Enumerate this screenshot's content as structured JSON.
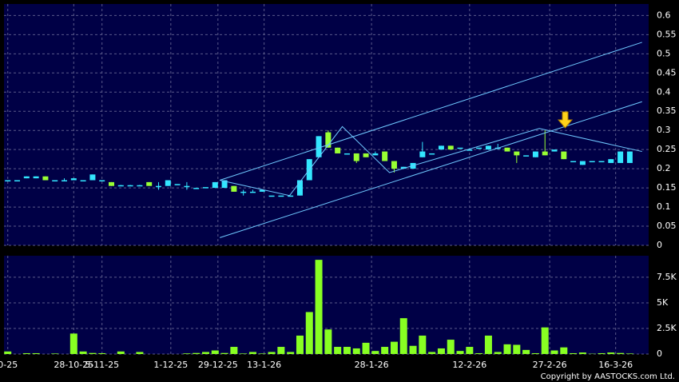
{
  "chart_data": [
    {
      "type": "candlestick",
      "xlim": [
        -0.4,
        68
      ],
      "ylim": [
        0,
        0.63
      ],
      "yticks": [
        0,
        0.05,
        0.1,
        0.15,
        0.2,
        0.25,
        0.3,
        0.35,
        0.4,
        0.45,
        0.5,
        0.55,
        0.6
      ],
      "xticks": [
        {
          "value": 0,
          "label": "0-25"
        },
        {
          "value": 7,
          "label": "28-10-25"
        },
        {
          "value": 10,
          "label": "5-11-25"
        },
        {
          "value": 17.3,
          "label": "1-12-25"
        },
        {
          "value": 22.3,
          "label": "29-12-25"
        },
        {
          "value": 27.2,
          "label": "13-1-26"
        },
        {
          "value": 38.6,
          "label": "28-1-26"
        },
        {
          "value": 49,
          "label": "12-2-26"
        },
        {
          "value": 57.5,
          "label": "27-2-26"
        },
        {
          "value": 64.5,
          "label": "16-3-26"
        }
      ],
      "grid": true,
      "up_color": "#33e6ff",
      "down_color": "#99ff33",
      "open": [
        0.17,
        0.17,
        0.175,
        0.175,
        0.18,
        0.17,
        0.17,
        0.17,
        0.17,
        0.17,
        0.17,
        0.165,
        0.157,
        0.157,
        0.157,
        0.165,
        0.155,
        0.155,
        0.16,
        0.155,
        0.148,
        0.152,
        0.15,
        0.15,
        0.155,
        0.14,
        0.14,
        0.14,
        0.13,
        0.13,
        0.13,
        0.13,
        0.17,
        0.23,
        0.295,
        0.255,
        0.24,
        0.24,
        0.24,
        0.235,
        0.245,
        0.22,
        0.2,
        0.2,
        0.23,
        0.24,
        0.25,
        0.26,
        0.255,
        0.25,
        0.255,
        0.25,
        0.255,
        0.255,
        0.245,
        0.235,
        0.23,
        0.245,
        0.245,
        0.245,
        0.22,
        0.21,
        0.22,
        0.22,
        0.215,
        0.215,
        0.215
      ],
      "high": [
        0.17,
        0.17,
        0.18,
        0.18,
        0.18,
        0.17,
        0.175,
        0.175,
        0.17,
        0.185,
        0.17,
        0.165,
        0.158,
        0.158,
        0.158,
        0.165,
        0.165,
        0.17,
        0.16,
        0.165,
        0.15,
        0.152,
        0.165,
        0.17,
        0.155,
        0.145,
        0.145,
        0.145,
        0.13,
        0.13,
        0.13,
        0.17,
        0.225,
        0.285,
        0.3,
        0.255,
        0.24,
        0.24,
        0.24,
        0.245,
        0.245,
        0.22,
        0.205,
        0.215,
        0.27,
        0.24,
        0.26,
        0.26,
        0.255,
        0.25,
        0.255,
        0.26,
        0.265,
        0.255,
        0.245,
        0.235,
        0.245,
        0.3,
        0.25,
        0.245,
        0.22,
        0.22,
        0.22,
        0.22,
        0.225,
        0.245,
        0.245
      ],
      "low": [
        0.17,
        0.17,
        0.175,
        0.175,
        0.17,
        0.17,
        0.17,
        0.17,
        0.17,
        0.17,
        0.17,
        0.155,
        0.157,
        0.157,
        0.157,
        0.155,
        0.145,
        0.155,
        0.16,
        0.145,
        0.148,
        0.152,
        0.15,
        0.15,
        0.14,
        0.13,
        0.14,
        0.14,
        0.13,
        0.13,
        0.13,
        0.13,
        0.17,
        0.23,
        0.255,
        0.24,
        0.24,
        0.215,
        0.23,
        0.235,
        0.22,
        0.19,
        0.2,
        0.2,
        0.23,
        0.24,
        0.25,
        0.25,
        0.255,
        0.25,
        0.255,
        0.25,
        0.25,
        0.245,
        0.215,
        0.235,
        0.23,
        0.235,
        0.245,
        0.225,
        0.22,
        0.21,
        0.22,
        0.22,
        0.215,
        0.215,
        0.215
      ],
      "close": [
        0.17,
        0.17,
        0.18,
        0.18,
        0.17,
        0.17,
        0.17,
        0.175,
        0.17,
        0.185,
        0.17,
        0.155,
        0.157,
        0.157,
        0.157,
        0.155,
        0.155,
        0.17,
        0.16,
        0.155,
        0.15,
        0.152,
        0.165,
        0.17,
        0.14,
        0.14,
        0.14,
        0.145,
        0.13,
        0.13,
        0.13,
        0.17,
        0.225,
        0.285,
        0.255,
        0.24,
        0.24,
        0.22,
        0.23,
        0.24,
        0.22,
        0.2,
        0.205,
        0.215,
        0.245,
        0.24,
        0.26,
        0.25,
        0.255,
        0.25,
        0.255,
        0.26,
        0.255,
        0.245,
        0.235,
        0.235,
        0.245,
        0.235,
        0.25,
        0.225,
        0.22,
        0.22,
        0.22,
        0.22,
        0.225,
        0.245,
        0.245
      ],
      "trendlines": [
        {
          "x": [
            22.5,
            67.3
          ],
          "y": [
            0.17,
            0.53
          ]
        },
        {
          "x": [
            22.5,
            67.3
          ],
          "y": [
            0.02,
            0.375
          ]
        },
        {
          "x": [
            22.5,
            29.9,
            35.5,
            40.5,
            56.4,
            67.3
          ],
          "y": [
            0.17,
            0.13,
            0.31,
            0.19,
            0.305,
            0.245
          ]
        }
      ],
      "trendline_color": "#6fc8ff"
    },
    {
      "type": "bar",
      "xlim": [
        -0.4,
        68
      ],
      "ylim": [
        0,
        9600
      ],
      "yticks": [
        0,
        {
          "value": 2500,
          "label": "2.5K"
        },
        {
          "value": 5000,
          "label": "5K"
        },
        {
          "value": 7500,
          "label": "7.5K"
        }
      ],
      "grid": true,
      "color": "#88ff22",
      "values": [
        250,
        0,
        80,
        80,
        0,
        50,
        0,
        2000,
        250,
        100,
        80,
        0,
        250,
        0,
        200,
        0,
        0,
        0,
        0,
        60,
        100,
        200,
        350,
        100,
        700,
        50,
        200,
        50,
        200,
        700,
        200,
        1800,
        4100,
        9200,
        2400,
        700,
        700,
        550,
        1100,
        300,
        700,
        1200,
        3500,
        800,
        1800,
        200,
        550,
        1400,
        300,
        700,
        80,
        1800,
        200,
        950,
        900,
        400,
        80,
        2600,
        350,
        650,
        80,
        150,
        30,
        80,
        150,
        100,
        50
      ]
    }
  ],
  "footer": "Copyright by AASTOCKS.com Ltd."
}
